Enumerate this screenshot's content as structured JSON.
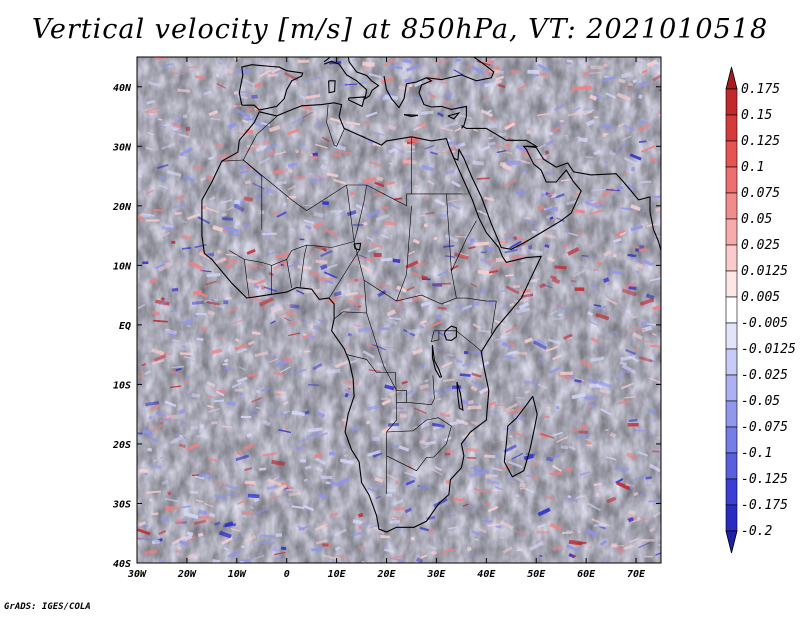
{
  "title": "Vertical velocity [m/s] at 850hPa, VT: 2021010518",
  "footer": "GrADS: IGES/COLA",
  "map": {
    "lon_range": [
      -30,
      75
    ],
    "lat_range": [
      -40,
      45
    ],
    "lat_ticks": [
      {
        "lat": 40,
        "label": "40N"
      },
      {
        "lat": 30,
        "label": "30N"
      },
      {
        "lat": 20,
        "label": "20N"
      },
      {
        "lat": 10,
        "label": "10N"
      },
      {
        "lat": 0,
        "label": "EQ"
      },
      {
        "lat": -10,
        "label": "10S"
      },
      {
        "lat": -20,
        "label": "20S"
      },
      {
        "lat": -30,
        "label": "30S"
      },
      {
        "lat": -40,
        "label": "40S"
      }
    ],
    "lon_ticks": [
      {
        "lon": -30,
        "label": "30W"
      },
      {
        "lon": -20,
        "label": "20W"
      },
      {
        "lon": -10,
        "label": "10W"
      },
      {
        "lon": 0,
        "label": "0"
      },
      {
        "lon": 10,
        "label": "10E"
      },
      {
        "lon": 20,
        "label": "20E"
      },
      {
        "lon": 30,
        "label": "30E"
      },
      {
        "lon": 40,
        "label": "40E"
      },
      {
        "lon": 50,
        "label": "50E"
      },
      {
        "lon": 60,
        "label": "60E"
      },
      {
        "lon": 70,
        "label": "70E"
      }
    ],
    "colors": {
      "up_strong": "#c0282d",
      "up_mid": "#f08080",
      "up_weak": "#fbd0d0",
      "down_weak": "#d6d8fb",
      "down_mid": "#8f93ec",
      "down_strong": "#2c2ccc",
      "coast": "#000000"
    }
  },
  "colorbar": {
    "levels": [
      "0.175",
      "0.15",
      "0.125",
      "0.1",
      "0.075",
      "0.05",
      "0.025",
      "0.0125",
      "0.005",
      "-0.005",
      "-0.0125",
      "-0.025",
      "-0.05",
      "-0.075",
      "-0.1",
      "-0.125",
      "-0.175",
      "-0.2"
    ],
    "colors": [
      "#a61b1e",
      "#c3282d",
      "#d63b3b",
      "#e65454",
      "#ee6f6f",
      "#f28c8c",
      "#f7abab",
      "#fbcaca",
      "#fde6e6",
      "#ffffff",
      "#e3e4fc",
      "#c8cbf8",
      "#adb1f3",
      "#9297ee",
      "#767ce8",
      "#5a5fe0",
      "#3b3fd4",
      "#2a2bc0",
      "#2020a8"
    ]
  }
}
